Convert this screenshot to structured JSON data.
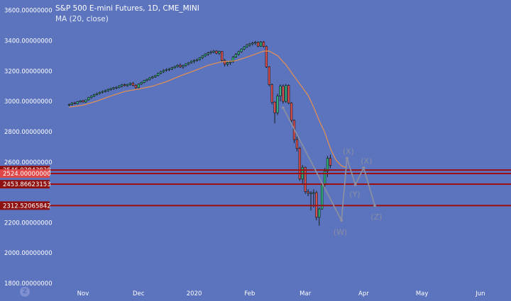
{
  "header": {
    "title": "S&P 500 E-mini Futures, 1D, CME_MINI",
    "indicator": "MA (20, close)"
  },
  "logo_glyph": "Z",
  "colors": {
    "background": "#5c74be",
    "up_candle": "#2db37a",
    "down_candle": "#d94e4e",
    "wick": "#1a1a1a",
    "ma_line": "#e6904e",
    "level_line": "#9a1010",
    "projection": "#8a8ea0"
  },
  "chart_data": {
    "type": "candlestick",
    "symbol": "S&P 500 E-mini Futures",
    "interval": "1D",
    "exchange": "CME_MINI",
    "ylim": [
      1800,
      3650
    ],
    "y_ticks": [
      {
        "value": 3600,
        "label": "3600.00000000"
      },
      {
        "value": 3400,
        "label": "3400.00000000"
      },
      {
        "value": 3200,
        "label": "3200.00000000"
      },
      {
        "value": 3000,
        "label": "3000.00000000"
      },
      {
        "value": 2800,
        "label": "2800.00000000"
      },
      {
        "value": 2600,
        "label": "2600.00000000"
      },
      {
        "value": 2200,
        "label": "2200.00000000"
      },
      {
        "value": 2000,
        "label": "2000.00000000"
      },
      {
        "value": 1800,
        "label": "1800.00000000"
      }
    ],
    "x_ticks": [
      {
        "label": "Nov",
        "bar": 5
      },
      {
        "label": "Dec",
        "bar": 25
      },
      {
        "label": "2020",
        "bar": 45
      },
      {
        "label": "Feb",
        "bar": 65
      },
      {
        "label": "Mar",
        "bar": 85
      },
      {
        "label": "Apr",
        "bar": 106
      },
      {
        "label": "May",
        "bar": 127
      },
      {
        "label": "Jun",
        "bar": 148
      }
    ],
    "x_range": [
      -7,
      158
    ],
    "candles": [
      [
        2975,
        2986,
        2968,
        2980
      ],
      [
        2980,
        2995,
        2972,
        2990
      ],
      [
        2990,
        2998,
        2980,
        2985
      ],
      [
        2985,
        3002,
        2982,
        2998
      ],
      [
        2998,
        3008,
        2990,
        3004
      ],
      [
        3004,
        3010,
        2992,
        2996
      ],
      [
        2996,
        3012,
        2990,
        3010
      ],
      [
        3010,
        3030,
        3005,
        3025
      ],
      [
        3025,
        3040,
        3018,
        3035
      ],
      [
        3035,
        3050,
        3028,
        3045
      ],
      [
        3045,
        3058,
        3038,
        3052
      ],
      [
        3052,
        3065,
        3045,
        3060
      ],
      [
        3060,
        3072,
        3052,
        3066
      ],
      [
        3066,
        3078,
        3058,
        3070
      ],
      [
        3070,
        3085,
        3062,
        3078
      ],
      [
        3078,
        3090,
        3070,
        3084
      ],
      [
        3084,
        3096,
        3075,
        3090
      ],
      [
        3090,
        3100,
        3080,
        3092
      ],
      [
        3092,
        3108,
        3086,
        3102
      ],
      [
        3102,
        3115,
        3092,
        3110
      ],
      [
        3110,
        3118,
        3098,
        3104
      ],
      [
        3104,
        3116,
        3096,
        3112
      ],
      [
        3112,
        3125,
        3104,
        3120
      ],
      [
        3120,
        3128,
        3100,
        3106
      ],
      [
        3106,
        3112,
        3082,
        3090
      ],
      [
        3090,
        3118,
        3084,
        3114
      ],
      [
        3114,
        3130,
        3108,
        3125
      ],
      [
        3125,
        3142,
        3118,
        3138
      ],
      [
        3138,
        3150,
        3130,
        3145
      ],
      [
        3145,
        3160,
        3138,
        3155
      ],
      [
        3155,
        3168,
        3148,
        3162
      ],
      [
        3162,
        3175,
        3155,
        3170
      ],
      [
        3170,
        3190,
        3165,
        3185
      ],
      [
        3185,
        3202,
        3178,
        3196
      ],
      [
        3196,
        3212,
        3188,
        3205
      ],
      [
        3205,
        3218,
        3196,
        3210
      ],
      [
        3210,
        3222,
        3200,
        3214
      ],
      [
        3214,
        3228,
        3206,
        3222
      ],
      [
        3222,
        3235,
        3214,
        3230
      ],
      [
        3230,
        3245,
        3222,
        3238
      ],
      [
        3238,
        3250,
        3220,
        3228
      ],
      [
        3228,
        3242,
        3215,
        3236
      ],
      [
        3236,
        3252,
        3228,
        3248
      ],
      [
        3248,
        3260,
        3238,
        3256
      ],
      [
        3256,
        3270,
        3248,
        3264
      ],
      [
        3264,
        3278,
        3252,
        3270
      ],
      [
        3270,
        3282,
        3262,
        3276
      ],
      [
        3276,
        3292,
        3268,
        3288
      ],
      [
        3288,
        3305,
        3280,
        3300
      ],
      [
        3300,
        3318,
        3292,
        3312
      ],
      [
        3312,
        3328,
        3300,
        3320
      ],
      [
        3320,
        3335,
        3310,
        3325
      ],
      [
        3325,
        3340,
        3316,
        3332
      ],
      [
        3332,
        3338,
        3310,
        3318
      ],
      [
        3318,
        3335,
        3306,
        3330
      ],
      [
        3330,
        3332,
        3262,
        3270
      ],
      [
        3270,
        3280,
        3230,
        3245
      ],
      [
        3245,
        3262,
        3232,
        3255
      ],
      [
        3255,
        3270,
        3240,
        3262
      ],
      [
        3262,
        3300,
        3255,
        3292
      ],
      [
        3292,
        3318,
        3286,
        3310
      ],
      [
        3310,
        3335,
        3302,
        3328
      ],
      [
        3328,
        3350,
        3320,
        3345
      ],
      [
        3345,
        3365,
        3338,
        3360
      ],
      [
        3360,
        3380,
        3352,
        3372
      ],
      [
        3372,
        3386,
        3360,
        3380
      ],
      [
        3380,
        3392,
        3368,
        3385
      ],
      [
        3385,
        3398,
        3372,
        3390
      ],
      [
        3390,
        3395,
        3358,
        3364
      ],
      [
        3364,
        3398,
        3360,
        3392
      ],
      [
        3392,
        3398,
        3355,
        3362
      ],
      [
        3362,
        3368,
        3220,
        3228
      ],
      [
        3228,
        3232,
        3100,
        3110
      ],
      [
        3110,
        3118,
        2980,
        2995
      ],
      [
        2995,
        3002,
        2855,
        2925
      ],
      [
        2925,
        3050,
        2910,
        3035
      ],
      [
        3035,
        3112,
        3000,
        3100
      ],
      [
        3100,
        3112,
        2985,
        3000
      ],
      [
        3000,
        3115,
        2990,
        3105
      ],
      [
        3105,
        3112,
        2980,
        2990
      ],
      [
        2990,
        2995,
        2858,
        2875
      ],
      [
        2875,
        2880,
        2725,
        2748
      ],
      [
        2748,
        2768,
        2670,
        2690
      ],
      [
        2690,
        2700,
        2475,
        2488
      ],
      [
        2488,
        2580,
        2455,
        2565
      ],
      [
        2565,
        2570,
        2390,
        2405
      ],
      [
        2405,
        2420,
        2375,
        2395
      ],
      [
        2395,
        2408,
        2280,
        2395
      ],
      [
        2395,
        2420,
        2300,
        2398
      ],
      [
        2398,
        2410,
        2215,
        2235
      ],
      [
        2235,
        2300,
        2180,
        2290
      ],
      [
        2290,
        2460,
        2285,
        2450
      ],
      [
        2450,
        2560,
        2420,
        2540
      ],
      [
        2540,
        2640,
        2500,
        2625
      ],
      [
        2625,
        2648,
        2560,
        2578
      ]
    ],
    "moving_average": {
      "name": "MA (20, close)",
      "values": [
        [
          0,
          2962
        ],
        [
          5,
          2975
        ],
        [
          10,
          3002
        ],
        [
          15,
          3035
        ],
        [
          20,
          3065
        ],
        [
          25,
          3082
        ],
        [
          30,
          3100
        ],
        [
          35,
          3130
        ],
        [
          40,
          3168
        ],
        [
          45,
          3202
        ],
        [
          50,
          3238
        ],
        [
          55,
          3262
        ],
        [
          60,
          3268
        ],
        [
          65,
          3298
        ],
        [
          70,
          3332
        ],
        [
          72,
          3332
        ],
        [
          75,
          3302
        ],
        [
          78,
          3242
        ],
        [
          81,
          3165
        ],
        [
          84,
          3090
        ],
        [
          86,
          3040
        ],
        [
          88,
          2962
        ],
        [
          90,
          2872
        ],
        [
          92,
          2795
        ],
        [
          94,
          2690
        ],
        [
          96,
          2614
        ],
        [
          98,
          2575
        ],
        [
          100,
          2562
        ]
      ]
    },
    "levels": [
      {
        "value": 2546.92843828,
        "label": "2546.92843828"
      },
      {
        "value": 2524.0,
        "label": "2524.00000000"
      },
      {
        "value": 2453.86623153,
        "label": "2453.86623153"
      },
      {
        "value": 2312.52065842,
        "label": "2312.52065842"
      }
    ],
    "projection": {
      "path": [
        [
          77,
          2958
        ],
        [
          98,
          2215
        ],
        [
          100,
          2625
        ],
        [
          103,
          2450
        ],
        [
          106,
          2562
        ],
        [
          110,
          2312
        ]
      ],
      "labels": [
        {
          "text": "(W)",
          "bar": 97.6,
          "value": 2138
        },
        {
          "text": "(X)",
          "bar": 100.5,
          "value": 2672
        },
        {
          "text": "(Y)",
          "bar": 102.8,
          "value": 2388
        },
        {
          "text": "(X)",
          "bar": 107,
          "value": 2608
        },
        {
          "text": "(Z)",
          "bar": 110.6,
          "value": 2240
        }
      ]
    }
  }
}
